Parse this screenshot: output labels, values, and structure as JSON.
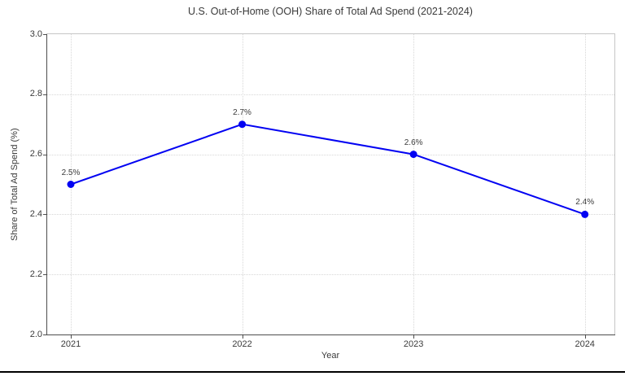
{
  "title": "U.S. Out-of-Home (OOH) Share of Total Ad Spend (2021-2024)",
  "chart_data": {
    "type": "line",
    "title": "U.S. Out-of-Home (OOH) Share of Total Ad Spend (2021-2024)",
    "xlabel": "Year",
    "ylabel": "Share of Total Ad Spend (%)",
    "x": [
      2021,
      2022,
      2023,
      2024
    ],
    "xtick_labels": [
      "2021",
      "2022",
      "2023",
      "2024"
    ],
    "values": [
      2.5,
      2.7,
      2.6,
      2.4
    ],
    "point_labels": [
      "2.5%",
      "2.7%",
      "2.6%",
      "2.4%"
    ],
    "ylim": [
      2.0,
      3.0
    ],
    "yticks": [
      2.0,
      2.2,
      2.4,
      2.6,
      2.8,
      3.0
    ],
    "ytick_labels": [
      "2.0",
      "2.2",
      "2.4",
      "2.6",
      "2.8",
      "3.0"
    ],
    "grid": "dotted, both axes",
    "legend": "none",
    "line_color": "#0202f2",
    "marker": "circle",
    "grid_color": "#d7d7d7",
    "axis_color": "#4d4d4d",
    "frame_color": "#c6c6c6",
    "text_color": "#3b3b3b"
  }
}
